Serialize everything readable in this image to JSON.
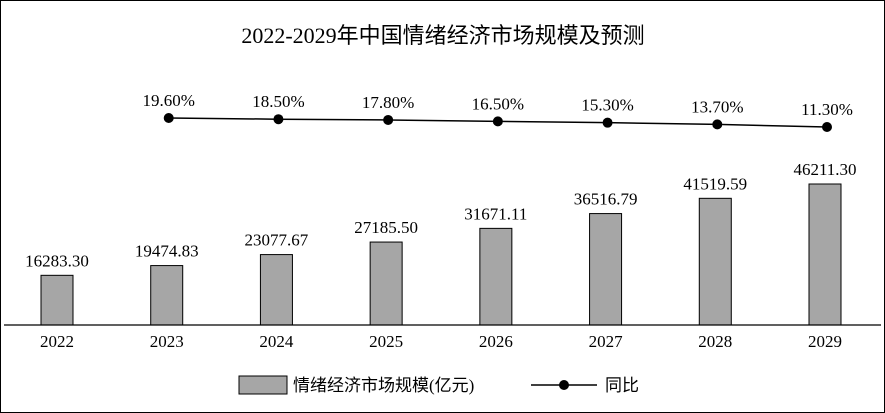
{
  "chart_data": {
    "type": "bar",
    "title": "2022-2029年中国情绪经济市场规模及预测",
    "categories": [
      "2022",
      "2023",
      "2024",
      "2025",
      "2026",
      "2027",
      "2028",
      "2029"
    ],
    "series": [
      {
        "name": "情绪经济市场规模(亿元)",
        "type": "bar",
        "values": [
          16283.3,
          19474.83,
          23077.67,
          27185.5,
          31671.11,
          36516.79,
          41519.59,
          46211.3
        ],
        "labels": [
          "16283.30",
          "19474.83",
          "23077.67",
          "27185.50",
          "31671.11",
          "36516.79",
          "41519.59",
          "46211.30"
        ],
        "color": "#a6a6a6"
      },
      {
        "name": "同比",
        "type": "line",
        "x": [
          "2023",
          "2024",
          "2025",
          "2026",
          "2027",
          "2028",
          "2029"
        ],
        "values": [
          19.6,
          18.5,
          17.8,
          16.5,
          15.3,
          13.7,
          11.3
        ],
        "labels": [
          "19.60%",
          "18.50%",
          "17.80%",
          "16.50%",
          "15.30%",
          "13.70%",
          "11.30%"
        ],
        "color": "#000000"
      }
    ],
    "legend": "bottom"
  }
}
